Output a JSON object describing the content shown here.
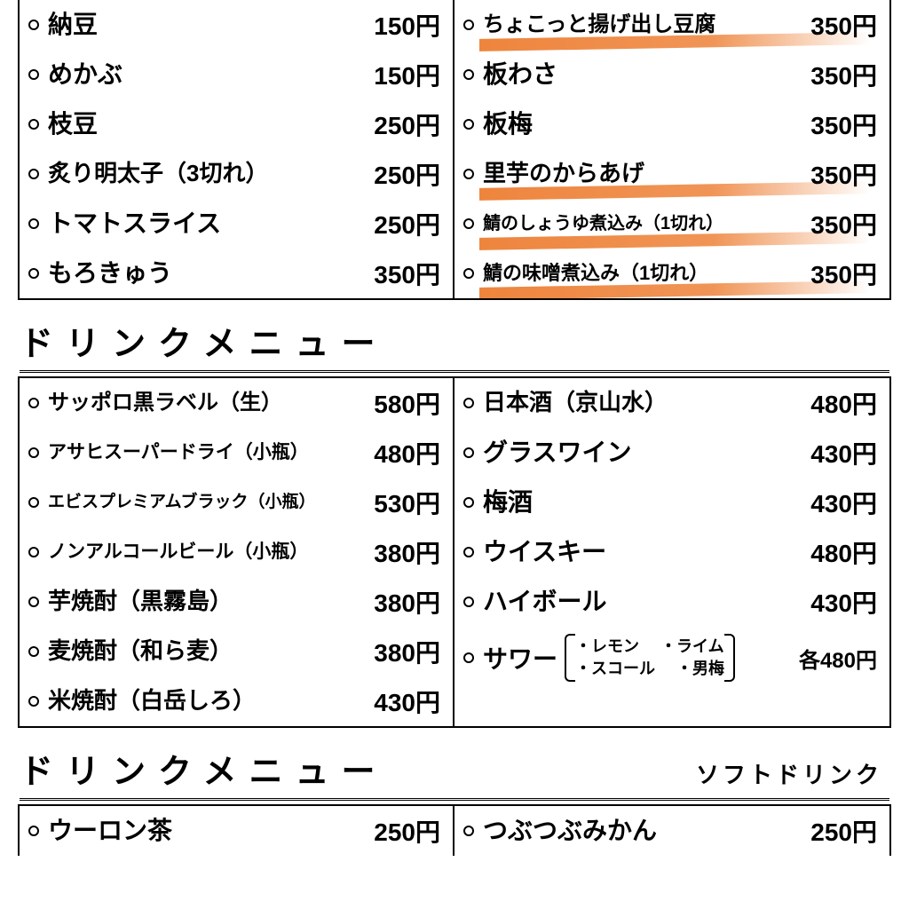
{
  "currency": "円",
  "colors": {
    "text": "#000000",
    "background": "#ffffff",
    "highlight": "#ed7d31",
    "border": "#000000"
  },
  "fontsizes": {
    "title": 38,
    "subtitle": 26,
    "item_default": 26,
    "item_small": 22,
    "item_xsmall": 20,
    "price": 28,
    "sour_option": 18
  },
  "food": {
    "left": [
      {
        "name": "納豆",
        "price": "150円",
        "size": 28,
        "hl": false
      },
      {
        "name": "めかぶ",
        "price": "150円",
        "size": 28,
        "hl": false
      },
      {
        "name": "枝豆",
        "price": "250円",
        "size": 28,
        "hl": false
      },
      {
        "name": "炙り明太子（3切れ）",
        "price": "250円",
        "size": 26,
        "hl": false
      },
      {
        "name": "トマトスライス",
        "price": "250円",
        "size": 28,
        "hl": false
      },
      {
        "name": "もろきゅう",
        "price": "350円",
        "size": 28,
        "hl": false
      }
    ],
    "right": [
      {
        "name": "ちょこっと揚げ出し豆腐",
        "price": "350円",
        "size": 24,
        "hl": true
      },
      {
        "name": "板わさ",
        "price": "350円",
        "size": 28,
        "hl": false
      },
      {
        "name": "板梅",
        "price": "350円",
        "size": 28,
        "hl": false
      },
      {
        "name": "里芋のからあげ",
        "price": "350円",
        "size": 26,
        "hl": true
      },
      {
        "name": "鯖のしょうゆ煮込み（1切れ）",
        "price": "350円",
        "size": 20,
        "hl": true
      },
      {
        "name": "鯖の味噌煮込み（1切れ）",
        "price": "350円",
        "size": 22,
        "hl": true
      }
    ]
  },
  "drink_title": "ドリンクメニュー",
  "drinks": {
    "left": [
      {
        "name": "サッポロ黒ラベル（生）",
        "price": "580円",
        "size": 24
      },
      {
        "name": "アサヒスーパードライ（小瓶）",
        "price": "480円",
        "size": 21
      },
      {
        "name": "エビスプレミアムブラック（小瓶）",
        "price": "530円",
        "size": 19
      },
      {
        "name": "ノンアルコールビール（小瓶）",
        "price": "380円",
        "size": 21
      },
      {
        "name": "芋焼酎（黒霧島）",
        "price": "380円",
        "size": 26
      },
      {
        "name": "麦焼酎（和ら麦）",
        "price": "380円",
        "size": 26
      },
      {
        "name": "米焼酎（白岳しろ）",
        "price": "430円",
        "size": 26
      }
    ],
    "right": [
      {
        "name": "日本酒（京山水）",
        "price": "480円",
        "size": 26
      },
      {
        "name": "グラスワイン",
        "price": "430円",
        "size": 28
      },
      {
        "name": "梅酒",
        "price": "430円",
        "size": 28
      },
      {
        "name": "ウイスキー",
        "price": "480円",
        "size": 28
      },
      {
        "name": "ハイボール",
        "price": "430円",
        "size": 28
      }
    ],
    "sour": {
      "label": "サワー",
      "options_row1": [
        "・レモン",
        "・ライム"
      ],
      "options_row2": [
        "・スコール",
        "・男梅"
      ],
      "price": "各480円",
      "size": 28
    }
  },
  "soft_title": "ドリンクメニュー",
  "soft_subtitle": "ソフトドリンク",
  "soft": {
    "left": [
      {
        "name": "ウーロン茶",
        "price": "250円",
        "size": 28
      }
    ],
    "right": [
      {
        "name": "つぶつぶみかん",
        "price": "250円",
        "size": 28
      }
    ]
  }
}
